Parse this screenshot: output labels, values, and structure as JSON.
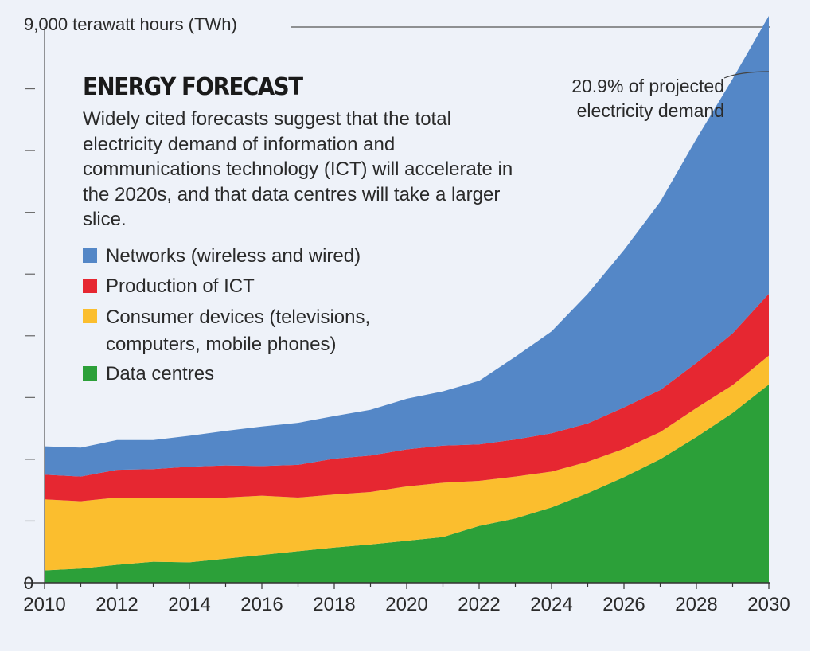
{
  "header": {
    "title": "ENERGY FORECAST",
    "subtitle": "Widely cited forecasts suggest that the total electricity demand of information and communications technology (ICT) will accelerate in the 2020s, and that data centres will take a larger slice.",
    "y_top_label": "9,000 terawatt hours (TWh)",
    "annotation": "20.9% of projected electricity demand"
  },
  "chart_data": {
    "type": "area",
    "stacked": true,
    "title": "ENERGY FORECAST",
    "xlabel": "",
    "ylabel": "9,000 terawatt hours (TWh)",
    "x": [
      2010,
      2011,
      2012,
      2013,
      2014,
      2015,
      2016,
      2017,
      2018,
      2019,
      2020,
      2021,
      2022,
      2023,
      2024,
      2025,
      2026,
      2027,
      2028,
      2029,
      2030
    ],
    "x_ticks": [
      "2010",
      "2012",
      "2014",
      "2016",
      "2018",
      "2020",
      "2022",
      "2024",
      "2026",
      "2028",
      "2030"
    ],
    "y_tick_labels": [
      "0"
    ],
    "ylim": [
      0,
      9000
    ],
    "grid": false,
    "legend_position": "top-left",
    "series": [
      {
        "name": "Data centres",
        "color": "#2ca039",
        "values": [
          200,
          230,
          290,
          340,
          330,
          390,
          450,
          510,
          570,
          620,
          680,
          740,
          920,
          1040,
          1220,
          1450,
          1710,
          2000,
          2360,
          2750,
          3210
        ]
      },
      {
        "name": "Consumer devices (televisions, computers, mobile phones)",
        "color": "#fbbe2e",
        "values": [
          1150,
          1090,
          1090,
          1030,
          1050,
          990,
          960,
          870,
          860,
          850,
          880,
          880,
          730,
          680,
          580,
          510,
          460,
          440,
          470,
          450,
          470
        ]
      },
      {
        "name": "Production of ICT",
        "color": "#e62731",
        "values": [
          400,
          400,
          450,
          470,
          500,
          520,
          480,
          530,
          580,
          590,
          600,
          600,
          590,
          600,
          620,
          620,
          670,
          680,
          730,
          840,
          1000
        ]
      },
      {
        "name": "Networks (wireless and wired)",
        "color": "#5487c7",
        "values": [
          460,
          470,
          480,
          470,
          500,
          560,
          640,
          680,
          690,
          740,
          820,
          880,
          1030,
          1340,
          1650,
          2100,
          2550,
          3050,
          3630,
          4120,
          4500
        ]
      }
    ]
  }
}
